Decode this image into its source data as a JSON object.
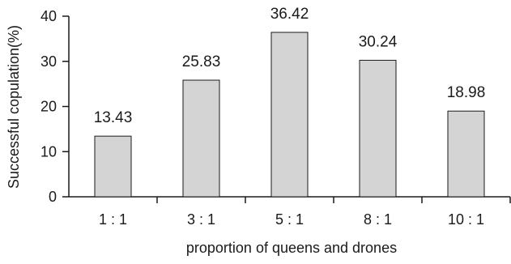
{
  "chart_data": {
    "type": "bar",
    "categories": [
      "1 : 1",
      "3 : 1",
      "5 : 1",
      "8 : 1",
      "10 : 1"
    ],
    "values": [
      13.43,
      25.83,
      36.42,
      30.24,
      18.98
    ],
    "value_labels": [
      "13.43",
      "25.83",
      "36.42",
      "30.24",
      "18.98"
    ],
    "title": "",
    "xlabel": "proportion of queens and drones",
    "ylabel": "Successful copulation(%)",
    "ylim": [
      0,
      40
    ],
    "yticks": [
      0,
      10,
      20,
      30,
      40
    ],
    "grid": false,
    "colors": {
      "bar_fill": "#d4d4d4",
      "bar_stroke": "#1a1a1a",
      "axis": "#1a1a1a"
    }
  }
}
